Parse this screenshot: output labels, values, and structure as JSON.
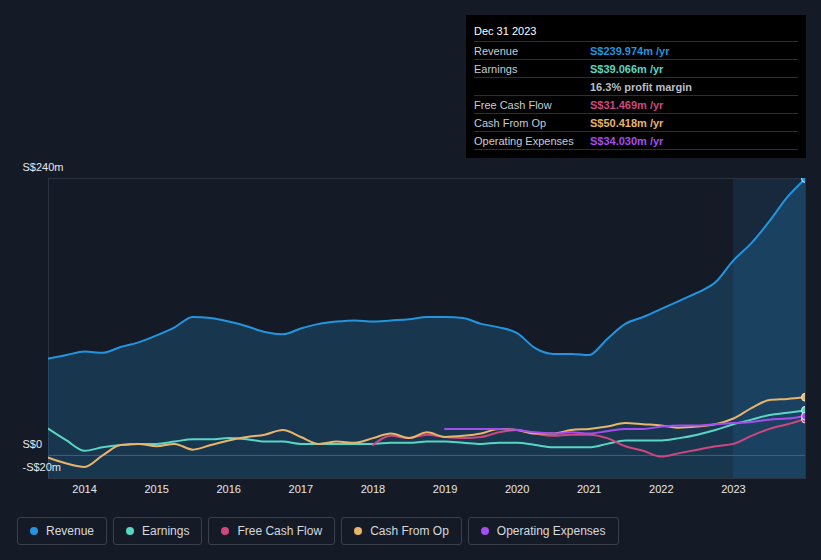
{
  "chart_data": {
    "type": "line",
    "x": [
      2013.5,
      2013.75,
      2014,
      2014.25,
      2014.5,
      2014.75,
      2015,
      2015.25,
      2015.5,
      2015.75,
      2016,
      2016.25,
      2016.5,
      2016.75,
      2017,
      2017.25,
      2017.5,
      2017.75,
      2018,
      2018.25,
      2018.5,
      2018.75,
      2019,
      2019.25,
      2019.5,
      2019.75,
      2020,
      2020.25,
      2020.5,
      2020.75,
      2021,
      2021.25,
      2021.5,
      2021.75,
      2022,
      2022.25,
      2022.5,
      2022.75,
      2023,
      2023.25,
      2023.5,
      2023.75,
      2024
    ],
    "series": [
      {
        "name": "Revenue",
        "color": "#2394df",
        "type": "area",
        "values": [
          84,
          87,
          90,
          89,
          94,
          98,
          104,
          111,
          120,
          119,
          116,
          112,
          107,
          105,
          110,
          114,
          116,
          117,
          116,
          117,
          118,
          120,
          120,
          119,
          114,
          111,
          106,
          93,
          88,
          88,
          87,
          101,
          114,
          120,
          127,
          134,
          141,
          150,
          169,
          184,
          203,
          224,
          239.974
        ]
      },
      {
        "name": "Earnings",
        "color": "#58d6c4",
        "values": [
          23,
          13,
          4,
          7,
          9,
          10,
          10,
          12,
          14,
          14,
          15,
          14,
          12,
          12,
          10,
          10,
          10,
          10,
          10,
          11,
          11,
          12,
          12,
          11,
          10,
          11,
          11,
          9,
          7,
          7,
          7,
          10,
          13,
          13,
          13,
          15,
          18,
          22,
          27,
          31,
          35,
          37,
          39.066
        ]
      },
      {
        "name": "Free Cash Flow",
        "color": "#d0467f",
        "values": [
          null,
          null,
          null,
          null,
          null,
          null,
          null,
          null,
          null,
          null,
          null,
          null,
          null,
          null,
          null,
          null,
          null,
          null,
          9,
          17,
          15,
          18,
          16,
          15,
          16,
          20,
          22,
          19,
          17,
          18,
          18,
          15,
          8,
          4,
          -1,
          2,
          5,
          8,
          10,
          17,
          23,
          27,
          31.469
        ]
      },
      {
        "name": "Cash From Op",
        "color": "#e9b46b",
        "values": [
          -2,
          -7,
          -10,
          0,
          9,
          10,
          8,
          10,
          5,
          9,
          13,
          16,
          18,
          22,
          16,
          10,
          12,
          11,
          15,
          19,
          15,
          20,
          16,
          17,
          19,
          23,
          22,
          19,
          19,
          22,
          23,
          25,
          28,
          27,
          26,
          24,
          25,
          27,
          32,
          41,
          48,
          49,
          50.418
        ]
      },
      {
        "name": "Operating Expenses",
        "color": "#a64df0",
        "values": [
          null,
          null,
          null,
          null,
          null,
          null,
          null,
          null,
          null,
          null,
          null,
          null,
          null,
          null,
          null,
          null,
          null,
          null,
          null,
          null,
          null,
          null,
          23,
          23,
          23,
          23,
          22,
          20,
          19,
          20,
          19,
          21,
          23,
          23,
          25,
          26,
          26,
          27,
          28,
          29,
          31,
          32,
          34.03
        ]
      }
    ],
    "xlim": [
      2013.5,
      2024
    ],
    "xticks": [
      2014,
      2015,
      2016,
      2017,
      2018,
      2019,
      2020,
      2021,
      2022,
      2023
    ],
    "ylim": [
      -20,
      240
    ],
    "yticks": [
      {
        "value": -20,
        "label": "-S$20m"
      },
      {
        "value": 0,
        "label": "S$0"
      },
      {
        "value": 240,
        "label": "S$240m"
      }
    ],
    "grid": true,
    "legend": "bottom",
    "tooltip": {
      "title": "Dec 31 2023",
      "rows": [
        {
          "label": "Revenue",
          "text": "S$239.974m /yr"
        },
        {
          "label": "Earnings",
          "text": "S$39.066m /yr"
        },
        {
          "text": "16.3% profit margin"
        },
        {
          "label": "Free Cash Flow",
          "text": "S$31.469m /yr"
        },
        {
          "label": "Cash From Op",
          "text": "S$50.418m /yr"
        },
        {
          "label": "Operating Expenses",
          "text": "S$34.030m /yr"
        }
      ]
    }
  }
}
